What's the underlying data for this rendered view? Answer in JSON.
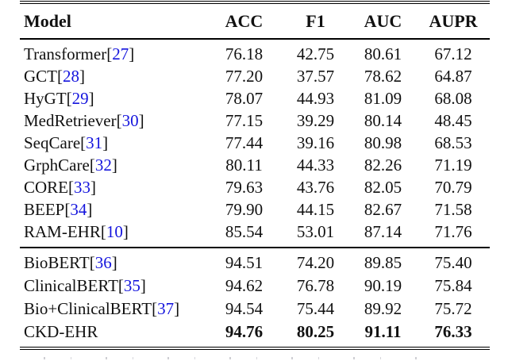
{
  "page": {
    "background": "#ffffff"
  },
  "colors": {
    "citation_blue": "#1414dd",
    "text": "#111111",
    "rule": "#000000"
  },
  "table": {
    "columns": [
      "Model",
      "ACC",
      "F1",
      "AUC",
      "AUPR"
    ],
    "groups": [
      {
        "name": "baseline-models",
        "rows": [
          {
            "model": "Transformer",
            "cite": "27",
            "acc": "76.18",
            "f1": "42.75",
            "auc": "80.61",
            "aupr": "67.12"
          },
          {
            "model": "GCT",
            "cite": "28",
            "acc": "77.20",
            "f1": "37.57",
            "auc": "78.62",
            "aupr": "64.87"
          },
          {
            "model": "HyGT",
            "cite": "29",
            "acc": "78.07",
            "f1": "44.93",
            "auc": "81.09",
            "aupr": "68.08"
          },
          {
            "model": "MedRetriever",
            "cite": "30",
            "acc": "77.15",
            "f1": "39.29",
            "auc": "80.14",
            "aupr": "48.45"
          },
          {
            "model": "SeqCare",
            "cite": "31",
            "acc": "77.44",
            "f1": "39.16",
            "auc": "80.98",
            "aupr": "68.53"
          },
          {
            "model": "GrphCare",
            "cite": "32",
            "acc": "80.11",
            "f1": "44.33",
            "auc": "82.26",
            "aupr": "71.19"
          },
          {
            "model": "CORE",
            "cite": "33",
            "acc": "79.63",
            "f1": "43.76",
            "auc": "82.05",
            "aupr": "70.79"
          },
          {
            "model": "BEEP",
            "cite": "34",
            "acc": "79.90",
            "f1": "44.15",
            "auc": "82.67",
            "aupr": "71.58"
          },
          {
            "model": "RAM-EHR",
            "cite": "10",
            "acc": "85.54",
            "f1": "53.01",
            "auc": "87.14",
            "aupr": "71.76"
          }
        ]
      },
      {
        "name": "bert-models",
        "rows": [
          {
            "model": "BioBERT",
            "cite": "36",
            "acc": "94.51",
            "f1": "74.20",
            "auc": "89.85",
            "aupr": "75.40"
          },
          {
            "model": "ClinicalBERT",
            "cite": "35",
            "acc": "94.62",
            "f1": "76.78",
            "auc": "90.19",
            "aupr": "75.84"
          },
          {
            "model": "Bio+ClinicalBERT",
            "cite": "37",
            "acc": "94.54",
            "f1": "75.44",
            "auc": "89.92",
            "aupr": "75.72"
          },
          {
            "model": "CKD-EHR",
            "cite": null,
            "bold_values": true,
            "acc": "94.76",
            "f1": "80.25",
            "auc": "91.11",
            "aupr": "76.33"
          }
        ]
      }
    ]
  }
}
